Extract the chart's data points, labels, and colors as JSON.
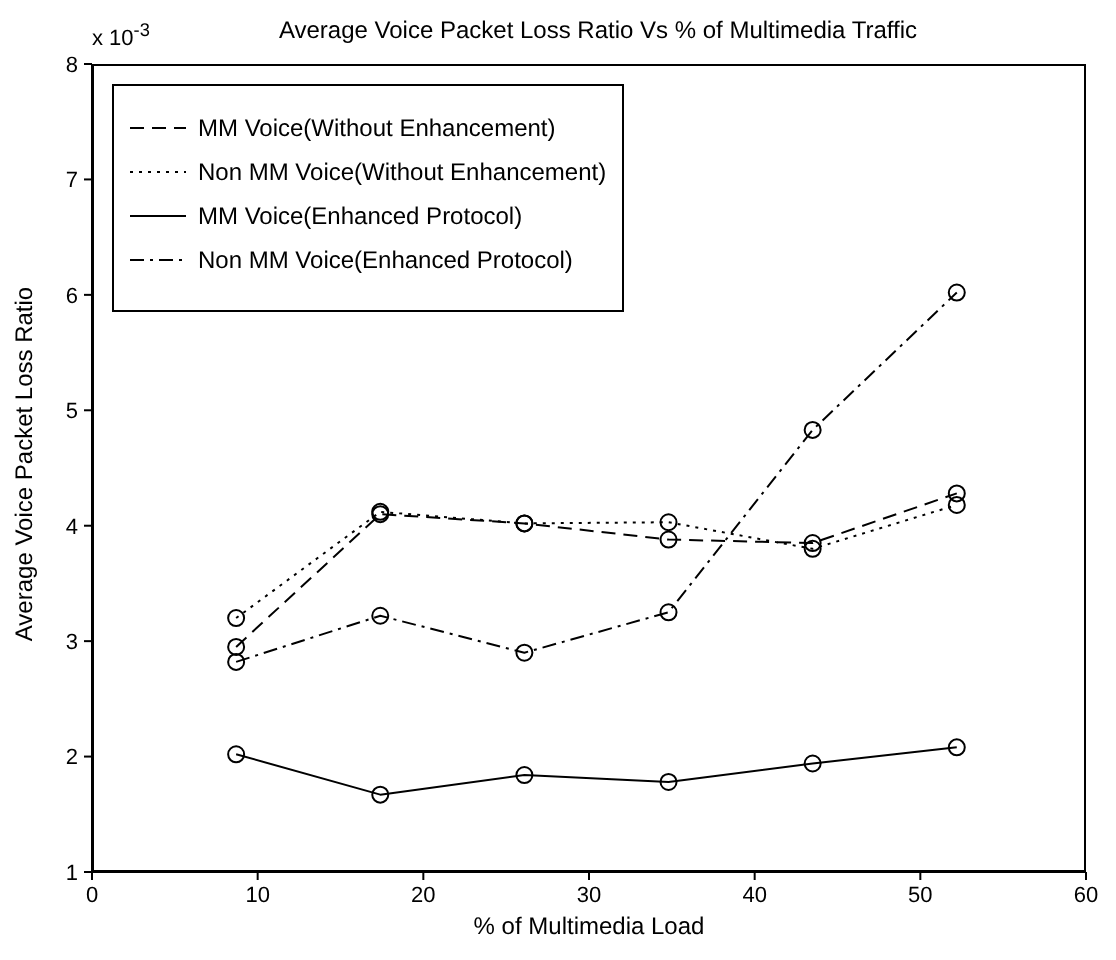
{
  "chart_data": {
    "type": "line",
    "title": "Average Voice Packet Loss Ratio Vs % of Multimedia Traffic",
    "xlabel": "% of Multimedia Load",
    "ylabel": "Average Voice Packet Loss Ratio",
    "annotations": [
      "x 10$^{-3}$"
    ],
    "x": [
      8.7,
      17.4,
      26.1,
      34.8,
      43.5,
      52.2
    ],
    "series": [
      {
        "name": "MM Voice(Without Enhancement)",
        "color": "#000000",
        "line_style": "dashed",
        "values": [
          2.95,
          4.1,
          4.02,
          3.88,
          3.85,
          4.28
        ]
      },
      {
        "name": "Non MM Voice(Without Enhancement)",
        "color": "#000000",
        "line_style": "dotted",
        "values": [
          3.2,
          4.12,
          4.02,
          4.03,
          3.8,
          4.18
        ]
      },
      {
        "name": "MM Voice(Enhanced Protocol)",
        "color": "#000000",
        "line_style": "solid",
        "values": [
          2.02,
          1.67,
          1.84,
          1.78,
          1.94,
          2.08
        ]
      },
      {
        "name": "Non MM Voice(Enhanced Protocol)",
        "color": "#000000",
        "line_style": "dashdot",
        "values": [
          2.82,
          3.22,
          2.9,
          3.25,
          4.83,
          6.02
        ]
      }
    ],
    "xlim": [
      0,
      60
    ],
    "xticks": [
      0,
      10,
      20,
      30,
      40,
      50,
      60
    ],
    "ylim": [
      1,
      8
    ],
    "yticks": [
      1,
      2,
      3,
      4,
      5,
      6,
      7,
      8
    ],
    "marker": "circle",
    "grid": false,
    "legend": "top left"
  }
}
